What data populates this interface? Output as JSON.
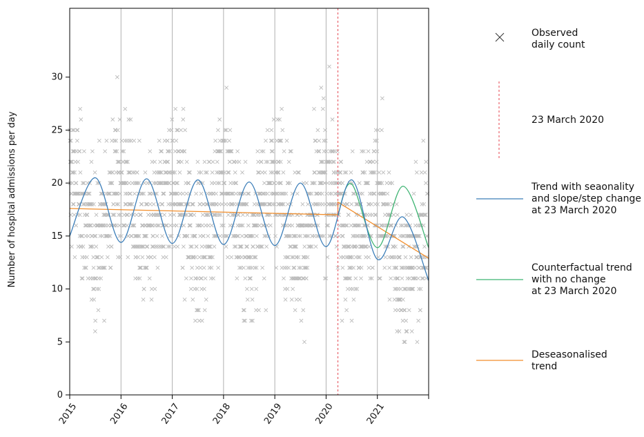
{
  "chart_data": {
    "type": "scatter",
    "title": "",
    "ylabel": "Number of hospital admissions per day",
    "xlabel": "",
    "ylim": [
      0,
      36.5
    ],
    "xlim": [
      2015.0,
      2022.0
    ],
    "yticks": [
      0,
      5,
      10,
      15,
      20,
      25,
      30
    ],
    "xticks": [
      {
        "value": 2015,
        "label": "2015"
      },
      {
        "value": 2016,
        "label": "2016"
      },
      {
        "value": 2017,
        "label": "2017"
      },
      {
        "value": 2018,
        "label": "2018"
      },
      {
        "value": 2019,
        "label": "2019"
      },
      {
        "value": 2020,
        "label": "2020"
      },
      {
        "value": 2021,
        "label": "2021"
      }
    ],
    "grid": "vertical",
    "intervention": {
      "x": 2020.23,
      "label": "23 March 2020"
    },
    "series": [
      {
        "name": "Observed daily count",
        "kind": "scatter",
        "color": "#bbbbbb",
        "summary": "daily counts ~5–35, denser around 10–25"
      },
      {
        "name": "Trend with seaonality and slope/step change at 23 March 2020",
        "kind": "line",
        "color": "#3a7db8",
        "x": [
          2015.0,
          2015.5,
          2016.0,
          2016.5,
          2017.0,
          2017.5,
          2018.0,
          2018.5,
          2019.0,
          2019.5,
          2020.0,
          2020.5,
          2021.0,
          2021.5,
          2022.0
        ],
        "values": [
          15.0,
          20.5,
          14.4,
          20.4,
          14.3,
          20.3,
          14.2,
          20.1,
          14.1,
          20.0,
          14.0,
          20.3,
          12.8,
          16.8,
          10.8
        ]
      },
      {
        "name": "Counterfactual trend with no change at 23 March 2020",
        "kind": "line",
        "color": "#3cb371",
        "x": [
          2020.23,
          2020.5,
          2021.0,
          2021.5,
          2022.0
        ],
        "values": [
          17.0,
          19.9,
          13.9,
          19.7,
          13.9
        ]
      },
      {
        "name": "Deseasonalised trend",
        "kind": "line",
        "color": "#f28e2b",
        "x": [
          2015.0,
          2020.23,
          2020.23,
          2022.0
        ],
        "values": [
          17.6,
          17.0,
          18.2,
          12.9
        ]
      }
    ],
    "legend": {
      "position": "right",
      "items": [
        {
          "text": [
            "Observed",
            "daily count"
          ]
        },
        {
          "text": [
            "23 March 2020"
          ]
        },
        {
          "text": [
            "Trend with seaonality",
            "and slope/step change",
            "at 23 March 2020"
          ]
        },
        {
          "text": [
            "Counterfactual trend",
            "with no change",
            "at 23 March 2020"
          ]
        },
        {
          "text": [
            "Deseasonalised",
            "trend"
          ]
        }
      ]
    }
  },
  "colors": {
    "observed": "#bbbbbb",
    "trend": "#3a7db8",
    "counterfactual": "#3cb371",
    "deseasonalised": "#f28e2b",
    "intervention": "#e8616a",
    "grid": "#b0b0b0",
    "axis": "#000000"
  }
}
